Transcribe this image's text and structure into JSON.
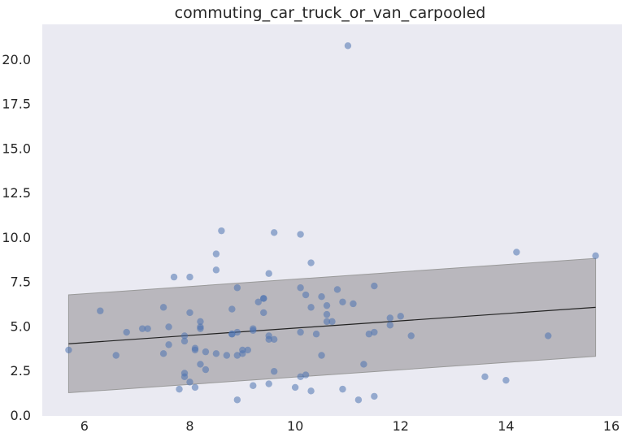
{
  "chart_data": {
    "type": "scatter",
    "title": "commuting_car_truck_or_van_carpooled",
    "xlabel": "",
    "ylabel": "",
    "xlim": [
      5.2,
      16.2
    ],
    "ylim": [
      0.0,
      22.0
    ],
    "grid": false,
    "colors": {
      "background": "#eaeaf2",
      "points": "#4c72b0",
      "band": "#b9b7bd",
      "band_edge": "#999999",
      "fit_line": "#222222"
    },
    "x_ticks": [
      {
        "value": 6,
        "label": "6"
      },
      {
        "value": 8,
        "label": "8"
      },
      {
        "value": 10,
        "label": "10"
      },
      {
        "value": 12,
        "label": "12"
      },
      {
        "value": 14,
        "label": "14"
      },
      {
        "value": 16,
        "label": "16"
      }
    ],
    "y_ticks": [
      {
        "value": 0.0,
        "label": "0.0"
      },
      {
        "value": 2.5,
        "label": "2.5"
      },
      {
        "value": 5.0,
        "label": "5.0"
      },
      {
        "value": 7.5,
        "label": "7.5"
      },
      {
        "value": 10.0,
        "label": "10.0"
      },
      {
        "value": 12.5,
        "label": "12.5"
      },
      {
        "value": 15.0,
        "label": "15.0"
      },
      {
        "value": 17.5,
        "label": "17.5"
      },
      {
        "value": 20.0,
        "label": "20.0"
      }
    ],
    "fit_line": {
      "x": [
        5.7,
        15.7
      ],
      "y": [
        4.05,
        6.1
      ]
    },
    "band": {
      "x": [
        5.7,
        15.7
      ],
      "upper": [
        6.8,
        8.85
      ],
      "lower": [
        1.3,
        3.35
      ]
    },
    "points": [
      {
        "x": 11.0,
        "y": 20.8
      },
      {
        "x": 8.6,
        "y": 10.4
      },
      {
        "x": 9.6,
        "y": 10.3
      },
      {
        "x": 10.1,
        "y": 10.2
      },
      {
        "x": 8.5,
        "y": 9.1
      },
      {
        "x": 8.5,
        "y": 8.2
      },
      {
        "x": 10.3,
        "y": 8.6
      },
      {
        "x": 9.5,
        "y": 8.0
      },
      {
        "x": 7.7,
        "y": 7.8
      },
      {
        "x": 8.0,
        "y": 7.8
      },
      {
        "x": 8.9,
        "y": 7.2
      },
      {
        "x": 10.1,
        "y": 7.2
      },
      {
        "x": 10.8,
        "y": 7.1
      },
      {
        "x": 11.5,
        "y": 7.3
      },
      {
        "x": 10.2,
        "y": 6.8
      },
      {
        "x": 10.5,
        "y": 6.7
      },
      {
        "x": 9.4,
        "y": 6.6
      },
      {
        "x": 9.4,
        "y": 6.6
      },
      {
        "x": 9.3,
        "y": 6.4
      },
      {
        "x": 10.9,
        "y": 6.4
      },
      {
        "x": 11.1,
        "y": 6.3
      },
      {
        "x": 10.3,
        "y": 6.1
      },
      {
        "x": 10.6,
        "y": 6.2
      },
      {
        "x": 7.5,
        "y": 6.1
      },
      {
        "x": 8.8,
        "y": 6.0
      },
      {
        "x": 6.3,
        "y": 5.9
      },
      {
        "x": 8.0,
        "y": 5.8
      },
      {
        "x": 9.4,
        "y": 5.8
      },
      {
        "x": 10.6,
        "y": 5.7
      },
      {
        "x": 12.0,
        "y": 5.6
      },
      {
        "x": 11.8,
        "y": 5.5
      },
      {
        "x": 10.6,
        "y": 5.3
      },
      {
        "x": 10.7,
        "y": 5.3
      },
      {
        "x": 8.2,
        "y": 5.3
      },
      {
        "x": 11.8,
        "y": 5.1
      },
      {
        "x": 7.6,
        "y": 5.0
      },
      {
        "x": 8.2,
        "y": 5.0
      },
      {
        "x": 8.2,
        "y": 4.9
      },
      {
        "x": 7.1,
        "y": 4.9
      },
      {
        "x": 7.2,
        "y": 4.9
      },
      {
        "x": 9.2,
        "y": 4.9
      },
      {
        "x": 9.2,
        "y": 4.8
      },
      {
        "x": 6.8,
        "y": 4.7
      },
      {
        "x": 8.9,
        "y": 4.7
      },
      {
        "x": 8.8,
        "y": 4.6
      },
      {
        "x": 8.8,
        "y": 4.6
      },
      {
        "x": 10.1,
        "y": 4.7
      },
      {
        "x": 10.4,
        "y": 4.6
      },
      {
        "x": 11.4,
        "y": 4.6
      },
      {
        "x": 11.5,
        "y": 4.7
      },
      {
        "x": 12.2,
        "y": 4.5
      },
      {
        "x": 7.9,
        "y": 4.5
      },
      {
        "x": 9.5,
        "y": 4.5
      },
      {
        "x": 9.5,
        "y": 4.3
      },
      {
        "x": 9.6,
        "y": 4.3
      },
      {
        "x": 7.9,
        "y": 4.2
      },
      {
        "x": 7.6,
        "y": 4.0
      },
      {
        "x": 8.1,
        "y": 3.8
      },
      {
        "x": 8.1,
        "y": 3.7
      },
      {
        "x": 9.0,
        "y": 3.7
      },
      {
        "x": 9.1,
        "y": 3.7
      },
      {
        "x": 5.7,
        "y": 3.7
      },
      {
        "x": 8.3,
        "y": 3.6
      },
      {
        "x": 8.5,
        "y": 3.5
      },
      {
        "x": 7.5,
        "y": 3.5
      },
      {
        "x": 9.0,
        "y": 3.5
      },
      {
        "x": 8.7,
        "y": 3.4
      },
      {
        "x": 8.9,
        "y": 3.4
      },
      {
        "x": 6.6,
        "y": 3.4
      },
      {
        "x": 10.5,
        "y": 3.4
      },
      {
        "x": 8.2,
        "y": 2.9
      },
      {
        "x": 11.3,
        "y": 2.9
      },
      {
        "x": 8.3,
        "y": 2.6
      },
      {
        "x": 9.6,
        "y": 2.5
      },
      {
        "x": 7.9,
        "y": 2.4
      },
      {
        "x": 10.2,
        "y": 2.3
      },
      {
        "x": 7.9,
        "y": 2.2
      },
      {
        "x": 10.1,
        "y": 2.2
      },
      {
        "x": 13.6,
        "y": 2.2
      },
      {
        "x": 14.0,
        "y": 2.0
      },
      {
        "x": 8.0,
        "y": 1.9
      },
      {
        "x": 9.5,
        "y": 1.8
      },
      {
        "x": 9.2,
        "y": 1.7
      },
      {
        "x": 8.1,
        "y": 1.6
      },
      {
        "x": 10.0,
        "y": 1.6
      },
      {
        "x": 7.8,
        "y": 1.5
      },
      {
        "x": 10.9,
        "y": 1.5
      },
      {
        "x": 10.3,
        "y": 1.4
      },
      {
        "x": 11.5,
        "y": 1.1
      },
      {
        "x": 8.9,
        "y": 0.9
      },
      {
        "x": 11.2,
        "y": 0.9
      },
      {
        "x": 14.2,
        "y": 9.2
      },
      {
        "x": 15.7,
        "y": 9.0
      },
      {
        "x": 14.8,
        "y": 4.5
      }
    ]
  }
}
